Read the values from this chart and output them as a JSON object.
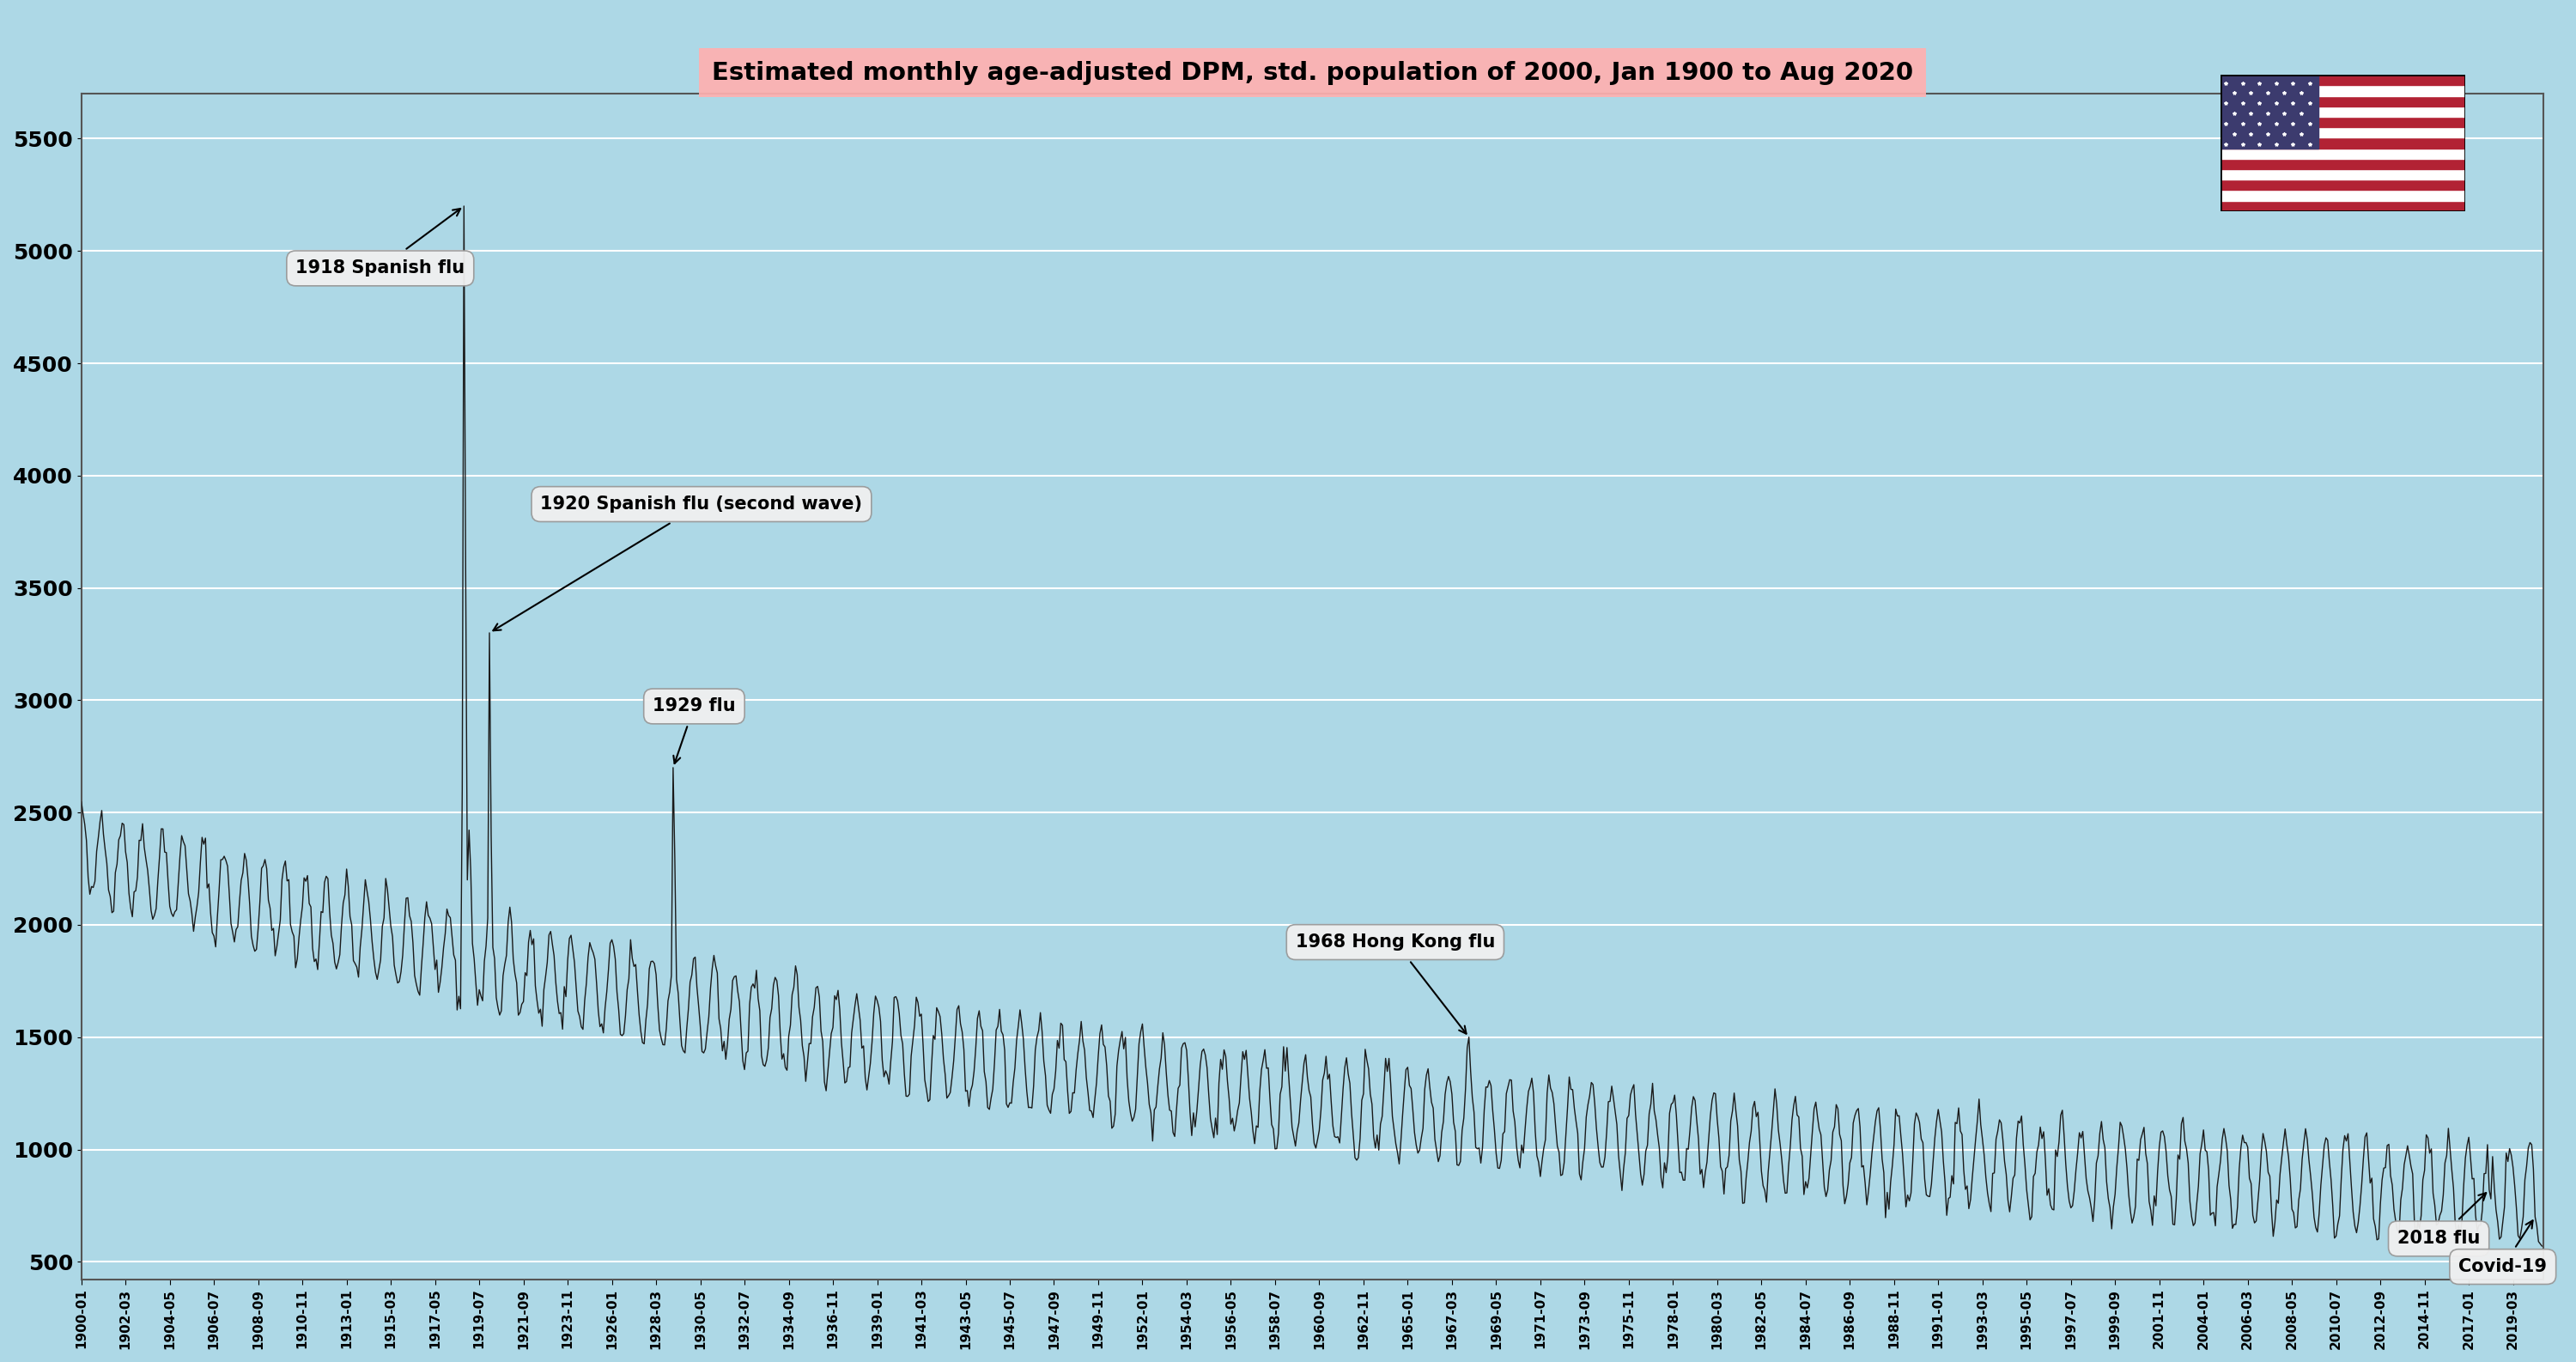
{
  "title": "Estimated monthly age-adjusted DPM, std. population of 2000, Jan 1900 to Aug 2020",
  "bg_color": "#add8e6",
  "title_bg_color": "#ffb0b0",
  "line_color": "#1a1a1a",
  "ylabel_values": [
    500,
    1000,
    1500,
    2000,
    2500,
    3000,
    3500,
    4000,
    4500,
    5000,
    5500
  ],
  "ylim": [
    420,
    5700
  ],
  "xtick_labels": [
    "1900-01",
    "1902-03",
    "1904-05",
    "1906-07",
    "1908-09",
    "1910-11",
    "1913-01",
    "1915-03",
    "1917-05",
    "1919-07",
    "1921-09",
    "1923-11",
    "1926-01",
    "1928-03",
    "1930-05",
    "1932-07",
    "1934-09",
    "1936-11",
    "1939-01",
    "1941-03",
    "1943-05",
    "1945-07",
    "1947-09",
    "1949-11",
    "1952-01",
    "1954-03",
    "1956-05",
    "1958-07",
    "1960-09",
    "1962-11",
    "1965-01",
    "1967-03",
    "1969-05",
    "1971-07",
    "1973-09",
    "1975-11",
    "1978-01",
    "1980-03",
    "1982-05",
    "1984-07",
    "1986-09",
    "1988-11",
    "1991-01",
    "1993-03",
    "1995-05",
    "1997-07",
    "1999-09",
    "2001-11",
    "2004-01",
    "2006-03",
    "2008-05",
    "2010-07",
    "2012-09",
    "2014-11",
    "2017-01",
    "2019-03"
  ]
}
